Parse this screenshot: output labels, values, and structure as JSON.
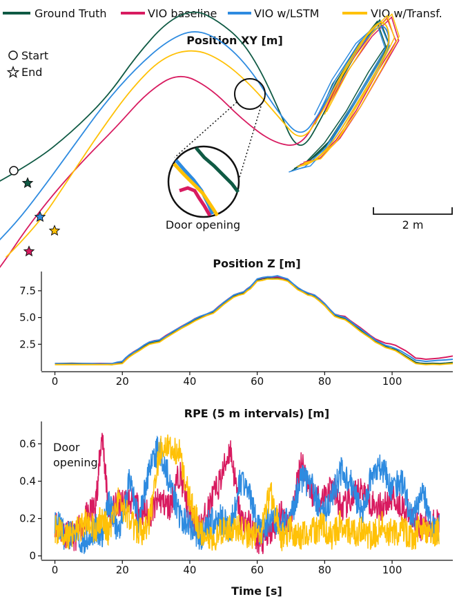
{
  "legend": [
    {
      "label": "Ground Truth",
      "color": "#0f5a44"
    },
    {
      "label": "VIO baseline",
      "color": "#d81b60"
    },
    {
      "label": "VIO w/LSTM",
      "color": "#2e8be0"
    },
    {
      "label": "VIO w/Transf.",
      "color": "#ffc107"
    }
  ],
  "marker_legend": {
    "start": "Start",
    "end": "End"
  },
  "annotations": {
    "door_xy": "Door opening",
    "door_rpe_line1": "Door",
    "door_rpe_line2": "opening"
  },
  "scalebar": "2 m",
  "chart_data": [
    {
      "type": "line",
      "title": "Position XY [m]",
      "xlabel": "",
      "ylabel": "",
      "scale_bar_m": 2,
      "series": [
        {
          "name": "Ground Truth",
          "color": "#0f5a44",
          "x": [
            -0.6,
            0.5,
            1.5,
            2.4,
            3.1,
            3.9,
            4.6,
            5.2,
            5.8,
            6.3,
            6.8,
            7.1,
            7.4,
            7.8,
            8.3,
            8.9,
            9.4,
            9.6,
            9.2,
            8.6,
            8.1,
            7.6,
            7.2
          ],
          "y": [
            -0.4,
            0.2,
            1.0,
            1.9,
            2.9,
            3.8,
            4.1,
            3.8,
            3.3,
            2.5,
            1.4,
            0.7,
            0.6,
            1.3,
            2.3,
            3.3,
            3.9,
            3.3,
            2.6,
            1.6,
            0.8,
            0.3,
            0.1
          ]
        },
        {
          "name": "VIO baseline",
          "color": "#d81b60",
          "x": [
            -0.7,
            -0.3,
            0.3,
            1.0,
            1.8,
            2.6,
            3.4,
            4.2,
            5.0,
            5.8,
            6.6,
            7.3,
            7.8,
            8.3,
            8.9,
            9.4,
            9.6,
            9.2,
            8.6,
            8.1,
            7.6,
            7.2
          ],
          "y": [
            -2.9,
            -2.4,
            -1.5,
            -0.6,
            0.3,
            1.1,
            2.0,
            2.5,
            2.1,
            1.3,
            0.7,
            0.6,
            1.5,
            2.4,
            3.3,
            3.8,
            3.2,
            2.5,
            1.5,
            0.7,
            0.2,
            0.1
          ]
        },
        {
          "name": "VIO w/LSTM",
          "color": "#2e8be0",
          "x": [
            -0.5,
            0.0,
            0.7,
            1.5,
            2.3,
            3.1,
            3.9,
            4.6,
            5.3,
            6.0,
            6.7,
            7.3,
            7.8,
            8.3,
            8.9,
            9.4,
            9.6,
            9.2,
            8.6,
            8.1,
            7.6,
            7.2
          ],
          "y": [
            -1.9,
            -1.4,
            -0.5,
            0.6,
            1.7,
            2.6,
            3.3,
            3.6,
            3.3,
            2.6,
            1.5,
            0.8,
            1.5,
            2.4,
            3.3,
            3.8,
            3.2,
            2.5,
            1.5,
            0.7,
            0.2,
            0.1
          ]
        },
        {
          "name": "VIO w/Transf.",
          "color": "#ffc107",
          "x": [
            -0.2,
            0.6,
            1.4,
            2.2,
            3.0,
            3.8,
            4.6,
            5.3,
            6.0,
            6.7,
            7.3,
            7.8,
            8.3,
            8.9,
            9.4,
            9.6,
            9.2,
            8.6,
            8.1,
            7.6,
            7.2
          ],
          "y": [
            -2.2,
            -1.4,
            -0.2,
            1.0,
            2.1,
            2.9,
            3.1,
            2.8,
            2.2,
            1.4,
            0.7,
            1.4,
            2.4,
            3.4,
            3.9,
            3.3,
            2.5,
            1.5,
            0.7,
            0.2,
            0.1
          ]
        }
      ]
    },
    {
      "type": "line",
      "title": "Position Z [m]",
      "xlabel": "",
      "ylabel": "",
      "xlim": [
        -4,
        118
      ],
      "ylim": [
        0,
        9.3
      ],
      "xticks": [
        0,
        20,
        40,
        60,
        80,
        100
      ],
      "yticks": [
        2.5,
        5.0,
        7.5
      ],
      "series": [
        {
          "name": "Ground Truth",
          "color": "#0f5a44",
          "x": [
            0,
            10,
            17,
            20,
            22,
            25,
            28,
            31,
            35,
            40,
            43,
            47,
            50,
            53,
            56,
            58,
            60,
            63,
            66,
            69,
            72,
            75,
            77,
            80,
            83,
            86,
            89,
            92,
            95,
            98,
            101,
            104,
            107,
            110,
            114,
            118
          ],
          "y": [
            0.7,
            0.7,
            0.6,
            0.8,
            1.4,
            2.0,
            2.6,
            2.8,
            3.6,
            4.5,
            5.0,
            5.5,
            6.3,
            7.0,
            7.3,
            7.8,
            8.5,
            8.7,
            8.7,
            8.5,
            7.7,
            7.2,
            7.0,
            6.2,
            5.2,
            4.9,
            4.2,
            3.5,
            2.8,
            2.3,
            2.0,
            1.4,
            0.8,
            0.7,
            0.7,
            0.8
          ]
        },
        {
          "name": "VIO baseline",
          "color": "#d81b60",
          "x": [
            0,
            10,
            17,
            20,
            22,
            25,
            28,
            31,
            35,
            40,
            43,
            47,
            50,
            53,
            56,
            58,
            60,
            63,
            66,
            69,
            72,
            75,
            77,
            80,
            83,
            86,
            89,
            92,
            95,
            98,
            101,
            104,
            107,
            110,
            114,
            118
          ],
          "y": [
            0.7,
            0.7,
            0.7,
            0.9,
            1.5,
            2.1,
            2.7,
            2.9,
            3.7,
            4.6,
            5.1,
            5.6,
            6.4,
            7.1,
            7.4,
            7.9,
            8.6,
            8.8,
            8.8,
            8.6,
            7.8,
            7.3,
            7.1,
            6.3,
            5.3,
            5.1,
            4.4,
            3.7,
            3.0,
            2.6,
            2.4,
            1.9,
            1.2,
            1.1,
            1.2,
            1.4
          ]
        },
        {
          "name": "VIO w/LSTM",
          "color": "#2e8be0",
          "x": [
            0,
            10,
            17,
            20,
            22,
            25,
            28,
            31,
            35,
            40,
            43,
            47,
            50,
            53,
            56,
            58,
            60,
            63,
            66,
            69,
            72,
            75,
            77,
            80,
            83,
            86,
            89,
            92,
            95,
            98,
            101,
            104,
            107,
            110,
            114,
            118
          ],
          "y": [
            0.7,
            0.7,
            0.7,
            0.9,
            1.5,
            2.1,
            2.7,
            2.9,
            3.7,
            4.6,
            5.1,
            5.6,
            6.4,
            7.1,
            7.4,
            7.9,
            8.6,
            8.8,
            8.9,
            8.6,
            7.8,
            7.3,
            7.1,
            6.3,
            5.3,
            5.0,
            4.3,
            3.6,
            2.9,
            2.4,
            2.1,
            1.6,
            1.0,
            0.9,
            1.0,
            1.1
          ]
        },
        {
          "name": "VIO w/Transf.",
          "color": "#ffc107",
          "x": [
            0,
            10,
            17,
            20,
            22,
            25,
            28,
            31,
            35,
            40,
            43,
            47,
            50,
            53,
            56,
            58,
            60,
            63,
            66,
            69,
            72,
            75,
            77,
            80,
            83,
            86,
            89,
            92,
            95,
            98,
            101,
            104,
            107,
            110,
            114,
            118
          ],
          "y": [
            0.6,
            0.6,
            0.6,
            0.7,
            1.3,
            1.9,
            2.5,
            2.7,
            3.5,
            4.4,
            4.9,
            5.4,
            6.2,
            6.9,
            7.2,
            7.7,
            8.4,
            8.6,
            8.6,
            8.4,
            7.6,
            7.1,
            6.9,
            6.1,
            5.1,
            4.8,
            4.1,
            3.4,
            2.7,
            2.2,
            1.9,
            1.3,
            0.7,
            0.6,
            0.6,
            0.7
          ]
        }
      ]
    },
    {
      "type": "line",
      "title": "RPE (5 m intervals) [m]",
      "xlabel": "Time [s]",
      "ylabel": "",
      "xlim": [
        -4,
        118
      ],
      "ylim": [
        -0.02,
        0.72
      ],
      "xticks": [
        0,
        20,
        40,
        60,
        80,
        100
      ],
      "yticks": [
        0,
        0.2,
        0.4,
        0.6
      ],
      "series": [
        {
          "name": "VIO baseline",
          "color": "#d81b60",
          "x": [
            0,
            3,
            6,
            9,
            12,
            14,
            16,
            19,
            22,
            25,
            28,
            31,
            34,
            37,
            40,
            43,
            46,
            49,
            52,
            55,
            58,
            61,
            64,
            67,
            70,
            73,
            76,
            79,
            82,
            85,
            88,
            91,
            94,
            97,
            100,
            103,
            106,
            109,
            112,
            114
          ],
          "y": [
            0.18,
            0.12,
            0.1,
            0.2,
            0.26,
            0.66,
            0.22,
            0.28,
            0.3,
            0.25,
            0.22,
            0.3,
            0.26,
            0.45,
            0.22,
            0.14,
            0.28,
            0.4,
            0.58,
            0.2,
            0.16,
            0.06,
            0.12,
            0.22,
            0.18,
            0.52,
            0.34,
            0.3,
            0.38,
            0.25,
            0.3,
            0.36,
            0.28,
            0.26,
            0.32,
            0.26,
            0.2,
            0.15,
            0.18,
            0.17
          ]
        },
        {
          "name": "VIO w/LSTM",
          "color": "#2e8be0",
          "x": [
            0,
            3,
            6,
            9,
            12,
            14,
            16,
            19,
            22,
            25,
            28,
            31,
            34,
            37,
            40,
            43,
            46,
            49,
            52,
            55,
            58,
            61,
            64,
            67,
            70,
            73,
            76,
            79,
            82,
            85,
            88,
            91,
            94,
            97,
            100,
            103,
            106,
            109,
            112,
            114
          ],
          "y": [
            0.2,
            0.1,
            0.12,
            0.08,
            0.15,
            0.12,
            0.28,
            0.12,
            0.4,
            0.18,
            0.48,
            0.58,
            0.4,
            0.22,
            0.16,
            0.1,
            0.18,
            0.2,
            0.14,
            0.4,
            0.3,
            0.12,
            0.2,
            0.16,
            0.2,
            0.42,
            0.38,
            0.22,
            0.3,
            0.46,
            0.4,
            0.2,
            0.45,
            0.48,
            0.36,
            0.4,
            0.18,
            0.36,
            0.14,
            0.15
          ]
        },
        {
          "name": "VIO w/Transf.",
          "color": "#ffc107",
          "x": [
            0,
            3,
            6,
            9,
            12,
            14,
            16,
            19,
            22,
            25,
            28,
            31,
            34,
            37,
            40,
            43,
            46,
            49,
            52,
            55,
            58,
            61,
            64,
            67,
            70,
            73,
            76,
            79,
            82,
            85,
            88,
            91,
            94,
            97,
            100,
            103,
            106,
            109,
            112,
            114
          ],
          "y": [
            0.15,
            0.1,
            0.12,
            0.18,
            0.14,
            0.22,
            0.12,
            0.3,
            0.2,
            0.12,
            0.18,
            0.56,
            0.6,
            0.55,
            0.3,
            0.14,
            0.1,
            0.12,
            0.16,
            0.14,
            0.1,
            0.12,
            0.35,
            0.1,
            0.14,
            0.1,
            0.12,
            0.16,
            0.1,
            0.18,
            0.12,
            0.14,
            0.1,
            0.16,
            0.12,
            0.14,
            0.1,
            0.16,
            0.12,
            0.14
          ]
        }
      ]
    }
  ]
}
